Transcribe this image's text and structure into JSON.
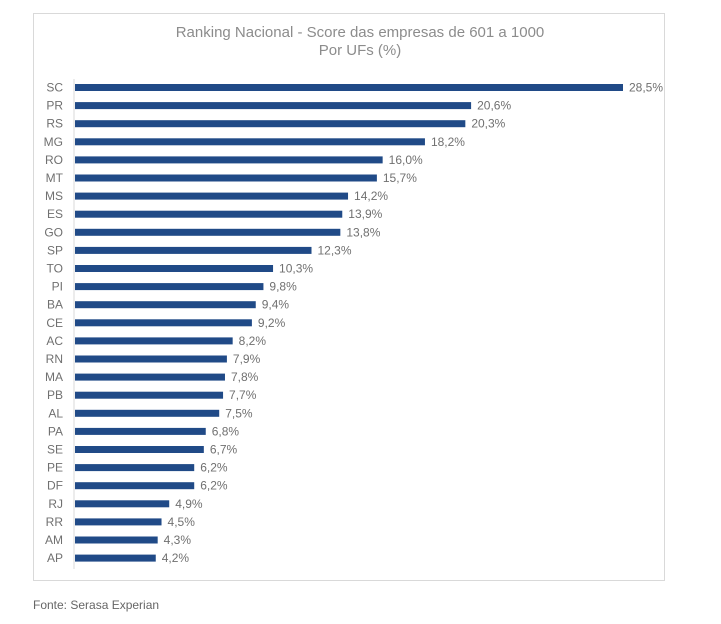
{
  "chart_data": {
    "type": "bar",
    "orientation": "horizontal",
    "title": "Ranking Nacional - Score das empresas de 601 a 1000",
    "subtitle": "Por UFs (%)",
    "categories": [
      "SC",
      "PR",
      "RS",
      "MG",
      "RO",
      "MT",
      "MS",
      "ES",
      "GO",
      "SP",
      "TO",
      "PI",
      "BA",
      "CE",
      "AC",
      "RN",
      "MA",
      "PB",
      "AL",
      "PA",
      "SE",
      "PE",
      "DF",
      "RJ",
      "RR",
      "AM",
      "AP"
    ],
    "values": [
      28.5,
      20.6,
      20.3,
      18.2,
      16.0,
      15.7,
      14.2,
      13.9,
      13.8,
      12.3,
      10.3,
      9.8,
      9.4,
      9.2,
      8.2,
      7.9,
      7.8,
      7.7,
      7.5,
      6.8,
      6.7,
      6.2,
      6.2,
      4.9,
      4.5,
      4.3,
      4.2
    ],
    "value_labels": [
      "28,5%",
      "20,6%",
      "20,3%",
      "18,2%",
      "16,0%",
      "15,7%",
      "14,2%",
      "13,9%",
      "13,8%",
      "12,3%",
      "10,3%",
      "9,8%",
      "9,4%",
      "9,2%",
      "8,2%",
      "7,9%",
      "7,8%",
      "7,7%",
      "7,5%",
      "6,8%",
      "6,7%",
      "6,2%",
      "6,2%",
      "4,9%",
      "4,5%",
      "4,3%",
      "4,2%"
    ],
    "xlim": [
      0,
      28.5
    ],
    "grid": false,
    "legend": "none",
    "bar_color": "#204A87"
  },
  "source": "Fonte: Serasa Experian"
}
